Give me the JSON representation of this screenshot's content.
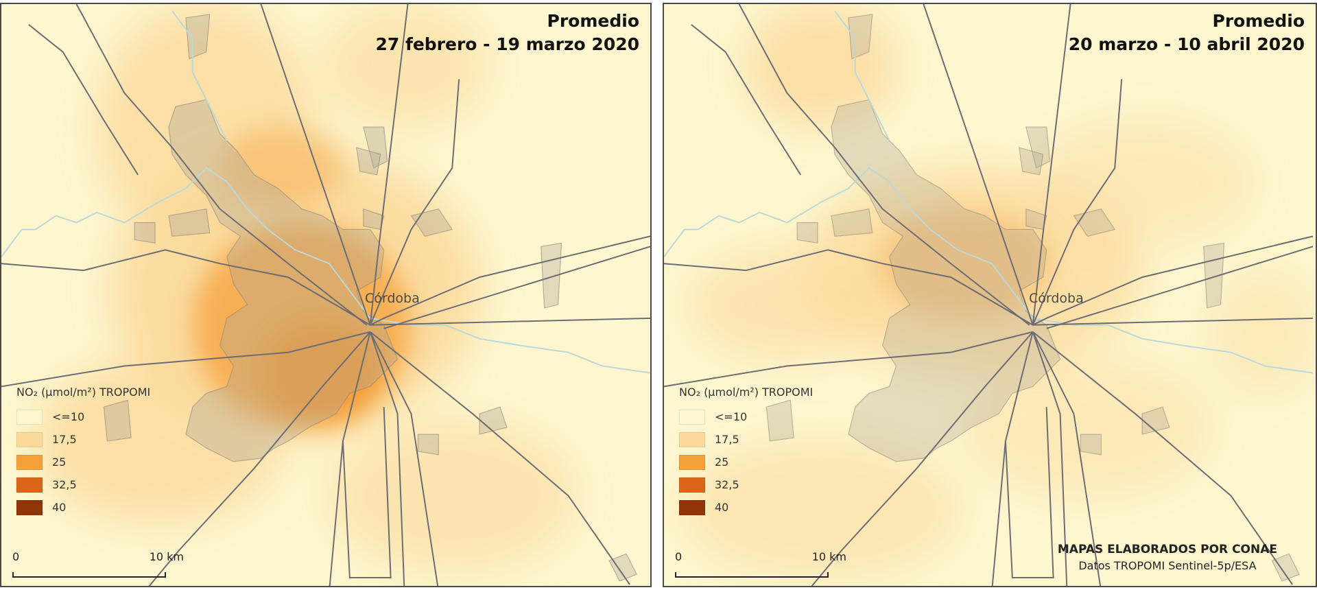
{
  "panels": [
    {
      "title_line1": "Promedio",
      "title_line2": "27 febrero  - 19 marzo 2020"
    },
    {
      "title_line1": "Promedio",
      "title_line2": "20 marzo  - 10 abril 2020"
    }
  ],
  "city_label": "Córdoba",
  "legend": {
    "title": "NO₂ (µmol/m²) TROPOMI",
    "items": [
      {
        "label": "<=10",
        "color": "#fdf6cf"
      },
      {
        "label": "17,5",
        "color": "#fbd99b"
      },
      {
        "label": "25",
        "color": "#f6a03a"
      },
      {
        "label": "32,5",
        "color": "#dc6617"
      },
      {
        "label": "40",
        "color": "#913408"
      }
    ]
  },
  "scale": {
    "start": "0",
    "end": "10 km"
  },
  "credits": {
    "line1": "MAPAS ELABORADOS POR CONAE",
    "line2": "Datos TROPOMI Sentinel-5p/ESA"
  }
}
